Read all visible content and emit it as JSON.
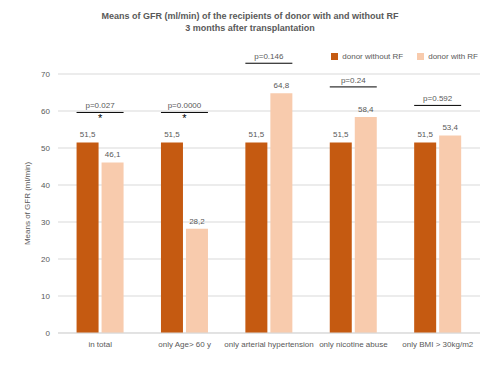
{
  "chart_data": {
    "type": "bar",
    "title": "Means of GFR (ml/min) of the recipients of donor with and without RF 3 months after transplantation",
    "y_label": "Means of GFR (ml/min)",
    "categories": [
      "in total",
      "only Age> 60 y",
      "only arterial hypertension",
      "only nicotine abuse",
      "only BMI > 30kg/m2"
    ],
    "series": [
      {
        "name": "donor without RF",
        "color": "#c55a11",
        "values": [
          51.5,
          51.5,
          51.5,
          51.5,
          51.5
        ],
        "value_labels": [
          "51,5",
          "51,5",
          "51,5",
          "51,5",
          "51,5"
        ]
      },
      {
        "name": "donor with RF",
        "color": "#f8cbad",
        "values": [
          46.1,
          28.2,
          64.8,
          58.4,
          53.4
        ],
        "value_labels": [
          "46,1",
          "28,2",
          "64,8",
          "58,4",
          "53,4"
        ]
      }
    ],
    "annotations": [
      {
        "category": "in total",
        "text": "p=0.027",
        "significance": "*"
      },
      {
        "category": "only Age> 60 y",
        "text": "p=0.0000",
        "significance": "*"
      },
      {
        "category": "only arterial hypertension",
        "text": "p=0.146"
      },
      {
        "category": "only nicotine abuse",
        "text": "p=0.24"
      },
      {
        "category": "only BMI > 30kg/m2",
        "text": "p=0.592"
      }
    ],
    "ylim": [
      0,
      70
    ],
    "yticks": [
      0,
      10,
      20,
      30,
      40,
      50,
      60,
      70
    ],
    "grid": true,
    "legend": "top-right",
    "data_labels": true
  }
}
